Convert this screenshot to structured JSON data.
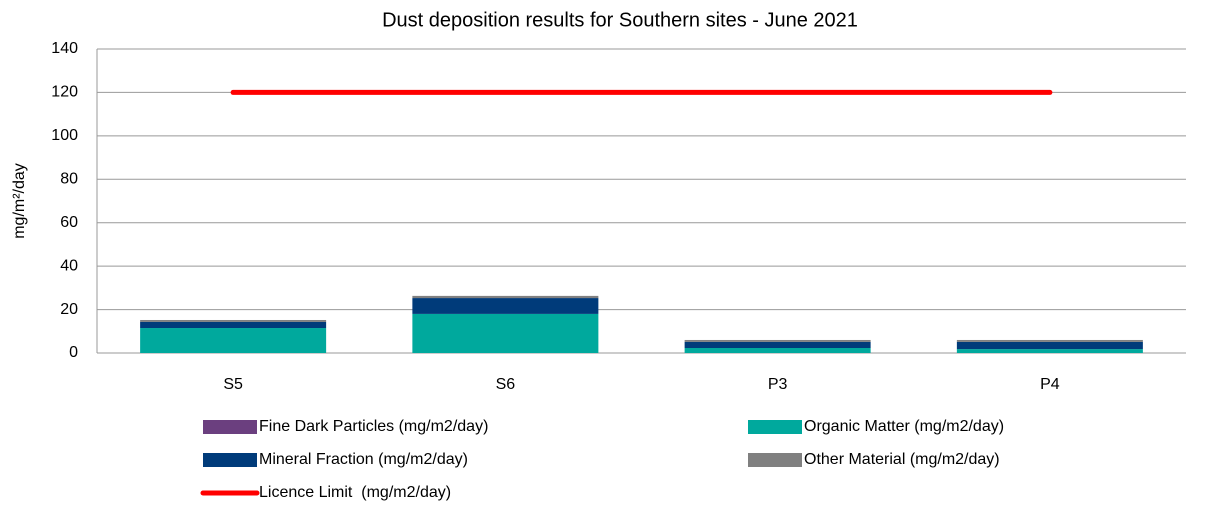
{
  "chart_data": {
    "type": "bar",
    "stacked": true,
    "title": "Dust deposition results for Southern sites - June 2021",
    "y_label": "mg/m²/day",
    "categories": [
      "S5",
      "S6",
      "P3",
      "P4"
    ],
    "series": [
      {
        "name": "Fine Dark Particles (mg/m2/day)",
        "color": "#6b3f7f",
        "values": [
          0,
          0,
          0,
          0
        ]
      },
      {
        "name": "Organic Matter (mg/m2/day)",
        "color": "#00a99d",
        "values": [
          11.5,
          18,
          2.3,
          1.8
        ]
      },
      {
        "name": "Mineral Fraction (mg/m2/day)",
        "color": "#003b7a",
        "values": [
          2.8,
          7.3,
          2.8,
          3.3
        ]
      },
      {
        "name": "Other Material (mg/m2/day)",
        "color": "#808080",
        "values": [
          0.9,
          1,
          0.9,
          0.9
        ]
      },
      {
        "name": "Licence Limit  (mg/m2/day)",
        "color": "#ff0000",
        "type": "line",
        "values": [
          120,
          120,
          120,
          120
        ]
      }
    ],
    "ylim": [
      0,
      140
    ],
    "yticks": [
      0,
      20,
      40,
      60,
      80,
      100,
      120,
      140
    ],
    "grid": true
  }
}
